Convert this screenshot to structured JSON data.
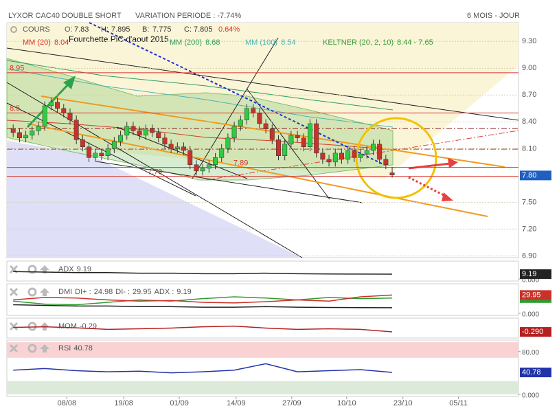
{
  "header": {
    "title": "LYXOR CAC40 DOUBLE SHORT",
    "variation": "VARIATION PERIODE : -7.74%",
    "period": "6 MOIS - JOUR"
  },
  "chart_data": [
    {
      "type": "candlestick",
      "legend": {
        "cours": "COURS",
        "open_label": "O:",
        "high_label": "H:",
        "low_label": "B:",
        "close_label": "C:",
        "change": "0.64%",
        "indicators": [
          {
            "name": "MM (20)",
            "value": 8.04,
            "color": "#d9362b"
          },
          {
            "name": "MM (200)",
            "value": 8.68,
            "color": "#2e9d5b"
          },
          {
            "name": "MM (100)",
            "value": 8.54,
            "color": "#4bb3b3"
          },
          {
            "name": "KELTNER (20, 2, 10)",
            "value": "8.44 - 7.65",
            "color": "#3a9a3a"
          }
        ]
      },
      "annotation": "Fourchette PiC d'aout 2015",
      "categories": [
        null,
        null,
        null,
        null,
        null,
        null,
        null,
        null,
        null,
        null,
        null,
        null,
        null,
        null,
        null,
        null,
        null,
        null,
        null,
        null,
        null,
        null,
        null,
        null,
        null,
        null,
        null,
        null,
        null,
        null,
        null,
        null,
        null,
        null,
        null,
        null,
        null,
        null,
        null,
        null,
        null,
        null,
        null,
        null,
        null,
        null,
        null,
        null,
        null,
        null,
        null,
        null,
        null,
        null,
        null,
        null,
        null,
        null,
        null,
        null,
        null
      ],
      "open": [
        8.32,
        8.28,
        8.22,
        8.25,
        8.3,
        8.35,
        8.58,
        8.62,
        8.55,
        8.5,
        8.42,
        8.2,
        8.12,
        8.0,
        8.05,
        8.02,
        8.1,
        8.18,
        8.25,
        8.35,
        8.3,
        8.25,
        8.32,
        8.28,
        8.22,
        8.15,
        8.1,
        8.12,
        8.08,
        7.92,
        7.85,
        7.88,
        7.92,
        8.0,
        8.1,
        8.22,
        8.35,
        8.42,
        8.55,
        8.5,
        8.38,
        8.32,
        8.2,
        8.02,
        8.15,
        8.25,
        8.22,
        8.12,
        8.38,
        8.05,
        7.98,
        7.95,
        8.05,
        7.98,
        8.08,
        8.0,
        8.04,
        8.08,
        8.15,
        7.98,
        7.83
      ],
      "high": [
        8.37,
        8.33,
        8.3,
        8.35,
        8.4,
        8.63,
        8.67,
        8.67,
        8.6,
        8.55,
        8.47,
        8.25,
        8.17,
        8.1,
        8.1,
        8.15,
        8.23,
        8.3,
        8.4,
        8.4,
        8.35,
        8.37,
        8.37,
        8.33,
        8.27,
        8.2,
        8.17,
        8.17,
        8.13,
        7.97,
        7.93,
        7.97,
        8.05,
        8.15,
        8.27,
        8.4,
        8.47,
        8.6,
        8.6,
        8.55,
        8.43,
        8.37,
        8.25,
        8.2,
        8.3,
        8.3,
        8.27,
        8.43,
        8.43,
        8.1,
        8.03,
        8.1,
        8.1,
        8.13,
        8.13,
        8.09,
        8.13,
        8.2,
        8.2,
        8.03,
        7.895
      ],
      "low": [
        8.23,
        8.17,
        8.17,
        8.2,
        8.25,
        8.3,
        8.53,
        8.5,
        8.45,
        8.37,
        8.15,
        8.07,
        7.95,
        7.95,
        7.97,
        7.97,
        8.05,
        8.13,
        8.2,
        8.25,
        8.2,
        8.2,
        8.23,
        8.17,
        8.1,
        8.05,
        8.05,
        8.03,
        7.87,
        7.8,
        7.8,
        7.83,
        7.87,
        7.95,
        8.05,
        8.17,
        8.3,
        8.37,
        8.45,
        8.33,
        8.27,
        8.15,
        7.97,
        7.97,
        8.1,
        8.17,
        8.07,
        8.07,
        8.0,
        7.93,
        7.9,
        7.9,
        7.93,
        7.93,
        7.95,
        7.95,
        7.99,
        8.03,
        7.93,
        7.87,
        7.775
      ],
      "close": [
        8.28,
        8.22,
        8.25,
        8.3,
        8.35,
        8.58,
        8.62,
        8.55,
        8.5,
        8.42,
        8.2,
        8.12,
        8.0,
        8.05,
        8.02,
        8.1,
        8.18,
        8.25,
        8.35,
        8.3,
        8.25,
        8.32,
        8.28,
        8.22,
        8.15,
        8.1,
        8.12,
        8.08,
        7.92,
        7.85,
        7.88,
        7.92,
        8.0,
        8.1,
        8.22,
        8.35,
        8.42,
        8.55,
        8.5,
        8.38,
        8.32,
        8.2,
        8.02,
        8.15,
        8.25,
        8.22,
        8.12,
        8.38,
        8.05,
        7.98,
        7.95,
        8.05,
        7.98,
        8.08,
        8.0,
        8.04,
        8.08,
        8.15,
        7.98,
        7.92,
        7.805
      ],
      "up_color": "#2ecc40",
      "down_color": "#c9322a",
      "xlim": [
        -1,
        80
      ],
      "xticks": [
        {
          "value": 8.5,
          "label": "08/08"
        },
        {
          "value": 17.5,
          "label": "19/08"
        },
        {
          "value": 26.3,
          "label": "01/09"
        },
        {
          "value": 35.3,
          "label": "14/09"
        },
        {
          "value": 44.1,
          "label": "27/09"
        },
        {
          "value": 52.8,
          "label": "10/10"
        },
        {
          "value": 61.7,
          "label": "23/10"
        },
        {
          "value": 70.5,
          "label": "05/11"
        }
      ],
      "ylim": [
        6.88,
        9.51
      ],
      "yticks": [
        {
          "value": 9.3,
          "label": "9.30"
        },
        {
          "value": 9.0,
          "label": "9.00"
        },
        {
          "value": 8.7,
          "label": "8.70"
        },
        {
          "value": 8.4,
          "label": "8.40"
        },
        {
          "value": 8.1,
          "label": "8.10"
        },
        {
          "value": 7.5,
          "label": "7.50"
        },
        {
          "value": 7.2,
          "label": "7.20"
        },
        {
          "value": 6.9,
          "label": "6.90"
        }
      ],
      "current_price": {
        "value": 7.8,
        "label": "7.80"
      },
      "levels": [
        8.95,
        8.5,
        7.89,
        7.79
      ],
      "level_color": "#d9362b",
      "grid": true
    },
    {
      "type": "line",
      "title": "ADX",
      "xlim": [
        -1,
        80
      ],
      "ylim": [
        0,
        30
      ],
      "yticks": [
        {
          "value": 0,
          "label": "0.000"
        }
      ],
      "series": [
        {
          "name": "ADX",
          "color": "#222222",
          "label_box": true,
          "x": [
            0,
            5,
            10,
            15,
            20,
            25,
            30,
            35,
            40,
            45,
            50,
            55,
            60
          ],
          "values": [
            14,
            13,
            12,
            12,
            11,
            11,
            10,
            10,
            11,
            10,
            9.5,
            9.3,
            9.19
          ]
        }
      ]
    },
    {
      "type": "line",
      "title": "DMI",
      "xlim": [
        -1,
        80
      ],
      "ylim": [
        0,
        45
      ],
      "yticks": [
        {
          "value": 0,
          "label": "0.000"
        }
      ],
      "series": [
        {
          "name": "DI+ :",
          "color": "#2e9d2e",
          "label_box": true,
          "x": [
            0,
            5,
            10,
            15,
            20,
            25,
            30,
            35,
            40,
            45,
            50,
            55,
            60
          ],
          "values": [
            20,
            15,
            14,
            18,
            22,
            20,
            24,
            27,
            25,
            22,
            26,
            24,
            24.98
          ]
        },
        {
          "name": "DI- :",
          "color": "#c9322a",
          "label_box": true,
          "x": [
            0,
            5,
            10,
            15,
            20,
            25,
            30,
            35,
            40,
            45,
            50,
            55,
            60
          ],
          "values": [
            22,
            26,
            25,
            22,
            20,
            21,
            18,
            17,
            19,
            22,
            20,
            27,
            29.95
          ]
        },
        {
          "name": "ADX :",
          "color": "#222222",
          "label_box": false,
          "x": [
            0,
            5,
            10,
            15,
            20,
            25,
            30,
            35,
            40,
            45,
            50,
            55,
            60
          ],
          "values": [
            14,
            13,
            12,
            12,
            11,
            11,
            10,
            10,
            11,
            10,
            9.5,
            9.3,
            9.19
          ]
        }
      ]
    },
    {
      "type": "line",
      "title": "MOM",
      "xlim": [
        -1,
        80
      ],
      "ylim": [
        -0.6,
        0.6
      ],
      "yticks": [],
      "series": [
        {
          "name": "MOM",
          "color": "#b52020",
          "label_box": true,
          "last_label": "-0.290",
          "x": [
            0,
            5,
            10,
            15,
            20,
            25,
            30,
            35,
            40,
            45,
            50,
            55,
            60
          ],
          "values": [
            0.05,
            0.1,
            0.02,
            -0.1,
            -0.05,
            0,
            0.1,
            0.15,
            0,
            -0.1,
            -0.05,
            -0.1,
            -0.29
          ]
        }
      ]
    },
    {
      "type": "line",
      "title": "RSI",
      "xlim": [
        -1,
        80
      ],
      "ylim": [
        0,
        97
      ],
      "yticks": [
        {
          "value": 80,
          "label": "80.00"
        },
        {
          "value": 0,
          "label": "0.000"
        }
      ],
      "zones": [
        {
          "from": 68,
          "to": 97,
          "color": "#f9d3d3"
        },
        {
          "from": 0,
          "to": 25,
          "color": "#dcebd9"
        }
      ],
      "series": [
        {
          "name": "RSI",
          "color": "#2233aa",
          "label_box": true,
          "x": [
            0,
            5,
            10,
            15,
            20,
            25,
            30,
            35,
            40,
            45,
            50,
            55,
            60
          ],
          "values": [
            45,
            48,
            44,
            42,
            43,
            40,
            42,
            45,
            57,
            42,
            44,
            46,
            40.78
          ]
        }
      ]
    }
  ]
}
